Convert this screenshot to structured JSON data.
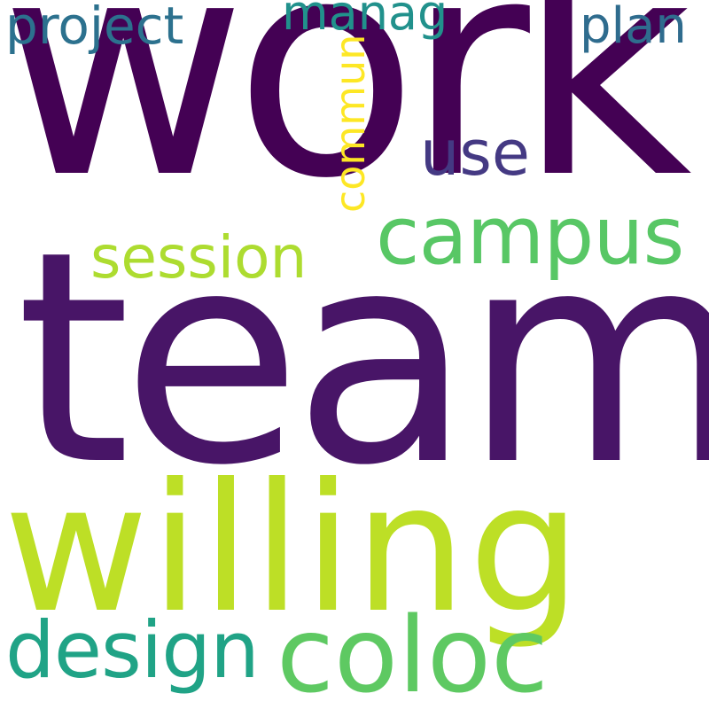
{
  "words": [
    {
      "text": "work",
      "color": "#440154"
    },
    {
      "text": "team",
      "color": "#481567"
    },
    {
      "text": "willing",
      "color": "#bddf26"
    },
    {
      "text": "coloc",
      "color": "#5ec962"
    },
    {
      "text": "design",
      "color": "#20a386"
    },
    {
      "text": "campus",
      "color": "#58c765"
    },
    {
      "text": "session",
      "color": "#addc30"
    },
    {
      "text": "use",
      "color": "#443983"
    },
    {
      "text": "commun",
      "color": "#fde725"
    },
    {
      "text": "project",
      "color": "#2c718e"
    },
    {
      "text": "manag",
      "color": "#21918c"
    },
    {
      "text": "plan",
      "color": "#2f6c8e"
    }
  ]
}
